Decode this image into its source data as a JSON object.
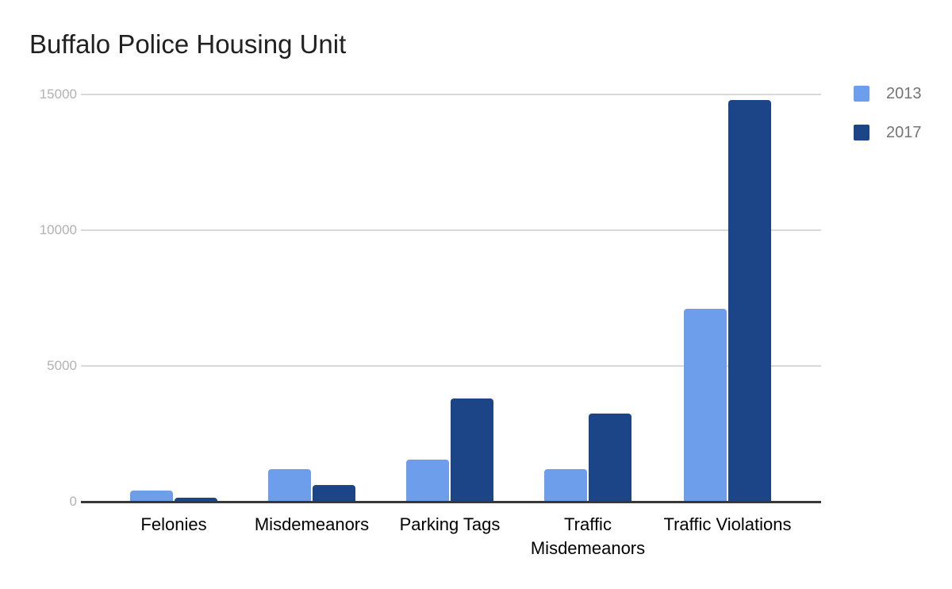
{
  "chart_data": {
    "type": "bar",
    "title": "Buffalo Police Housing Unit",
    "categories": [
      "Felonies",
      "Misdemeanors",
      "Parking Tags",
      "Traffic Misdemeanors",
      "Traffic Violations"
    ],
    "series": [
      {
        "name": "2013",
        "color": "#6D9EEB",
        "values": [
          400,
          1200,
          1550,
          1200,
          7100
        ]
      },
      {
        "name": "2017",
        "color": "#1C4587",
        "values": [
          160,
          600,
          3800,
          3250,
          14800
        ]
      }
    ],
    "xlabel": "",
    "ylabel": "",
    "ylim": [
      0,
      15000
    ],
    "yticks": [
      0,
      5000,
      10000,
      15000
    ],
    "ytick_labels": [
      "0",
      "5000",
      "10000",
      "15000"
    ],
    "grid": true,
    "legend_position": "right",
    "legend_text_color": "#757575",
    "gridline_color": "#d9d9d9",
    "axis_color": "#383838",
    "tick_label_color": "#b2b2b2",
    "title_color": "#212121"
  }
}
